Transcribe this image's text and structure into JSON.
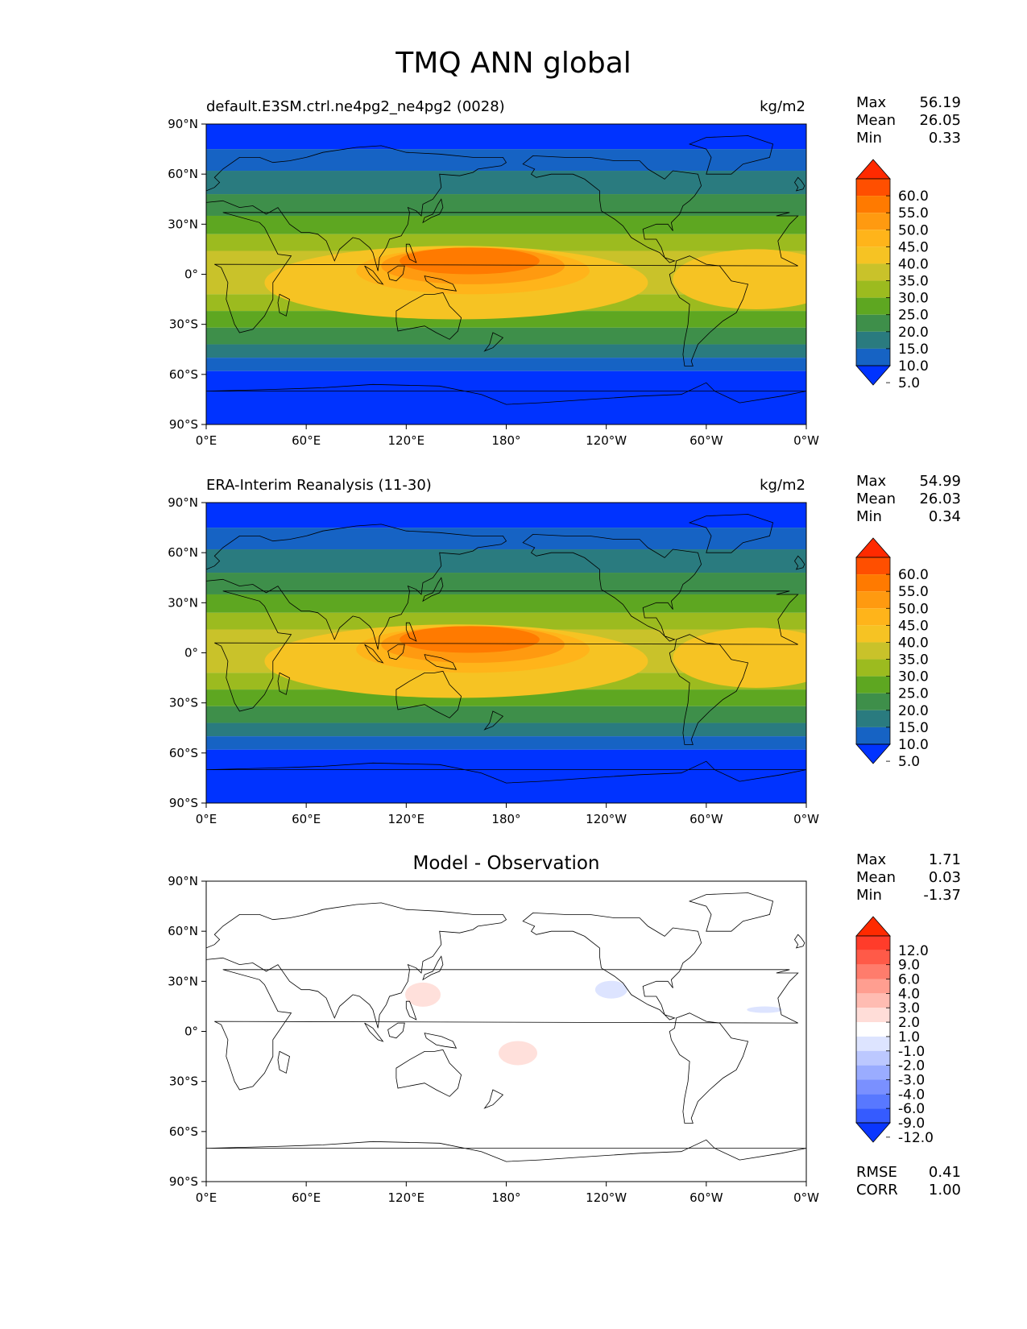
{
  "figure": {
    "title": "TMQ ANN global"
  },
  "axes": {
    "lat_ticks": [
      "90°N",
      "60°N",
      "30°N",
      "0°",
      "30°S",
      "60°S",
      "90°S"
    ],
    "lon_ticks": [
      "0°E",
      "60°E",
      "120°E",
      "180°",
      "120°W",
      "60°W",
      "0°W"
    ]
  },
  "panels": [
    {
      "id": "model",
      "left_title": "default.E3SM.ctrl.ne4pg2_ne4pg2 (0028)",
      "right_title": "kg/m2",
      "stats": [
        {
          "label": "Max",
          "value": "56.19"
        },
        {
          "label": "Mean",
          "value": "26.05"
        },
        {
          "label": "Min",
          "value": "0.33"
        }
      ],
      "colorbar_labels": [
        "60.0",
        "55.0",
        "50.0",
        "45.0",
        "40.0",
        "35.0",
        "30.0",
        "25.0",
        "20.0",
        "15.0",
        "10.0",
        "5.0"
      ],
      "colorbar_colors": [
        "#ff2a00",
        "#ff4f00",
        "#ff7a00",
        "#ff9a10",
        "#ffb41a",
        "#f6c323",
        "#c9c22a",
        "#9cbb1f",
        "#5ea721",
        "#3e8f4a",
        "#2a7b7f",
        "#1663c4",
        "#0033ff"
      ]
    },
    {
      "id": "obs",
      "left_title": "ERA-Interim Reanalysis (11-30)",
      "right_title": "kg/m2",
      "stats": [
        {
          "label": "Max",
          "value": "54.99"
        },
        {
          "label": "Mean",
          "value": "26.03"
        },
        {
          "label": "Min",
          "value": "0.34"
        }
      ],
      "colorbar_labels": [
        "60.0",
        "55.0",
        "50.0",
        "45.0",
        "40.0",
        "35.0",
        "30.0",
        "25.0",
        "20.0",
        "15.0",
        "10.0",
        "5.0"
      ],
      "colorbar_colors": [
        "#ff2a00",
        "#ff4f00",
        "#ff7a00",
        "#ff9a10",
        "#ffb41a",
        "#f6c323",
        "#c9c22a",
        "#9cbb1f",
        "#5ea721",
        "#3e8f4a",
        "#2a7b7f",
        "#1663c4",
        "#0033ff"
      ]
    },
    {
      "id": "diff",
      "center_title": "Model - Observation",
      "stats": [
        {
          "label": "Max",
          "value": "1.71"
        },
        {
          "label": "Mean",
          "value": "0.03"
        },
        {
          "label": "Min",
          "value": "-1.37"
        }
      ],
      "extra_stats": [
        {
          "label": "RMSE",
          "value": "0.41"
        },
        {
          "label": "CORR",
          "value": "1.00"
        }
      ],
      "colorbar_labels": [
        "12.0",
        "9.0",
        "6.0",
        "4.0",
        "3.0",
        "2.0",
        "1.0",
        "-1.0",
        "-2.0",
        "-3.0",
        "-4.0",
        "-6.0",
        "-9.0",
        "-12.0"
      ],
      "colorbar_colors": [
        "#ff2a00",
        "#ff3c2a",
        "#ff5a48",
        "#ff7c6c",
        "#ff9e90",
        "#ffbcb2",
        "#ffddd8",
        "#ffffff",
        "#dde4ff",
        "#bcc8ff",
        "#9aacff",
        "#7a90ff",
        "#5878ff",
        "#355bff",
        "#0a36ff"
      ]
    }
  ],
  "colors": {
    "band_polar": "#0033ff",
    "band_10": "#1663c4",
    "band_15": "#2a7b7f",
    "band_20": "#3e8f4a",
    "band_25": "#5ea721",
    "band_30": "#9cbb1f",
    "band_35": "#c9c22a",
    "band_40": "#f6c323",
    "band_45": "#ffb41a",
    "band_50": "#ff9a10",
    "band_55": "#ff7a00",
    "diff_pos": "#ffe0db",
    "diff_neg": "#dde4ff"
  }
}
